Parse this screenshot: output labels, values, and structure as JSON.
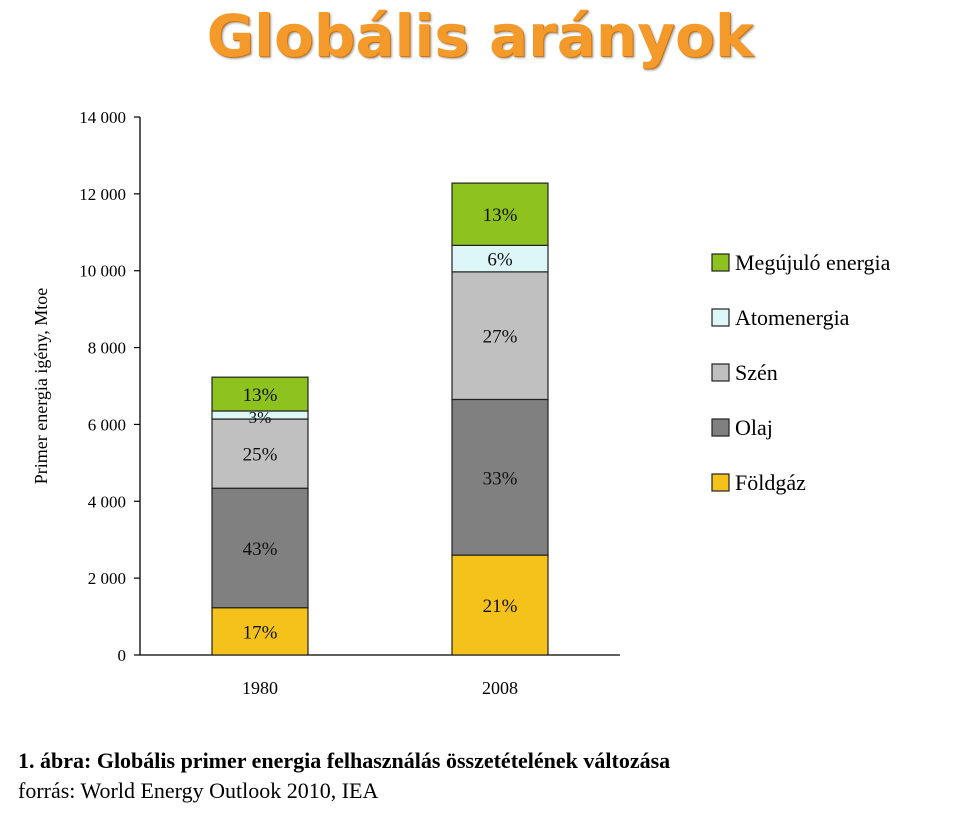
{
  "page": {
    "title": "Globális arányok",
    "caption": "1. ábra: Globális primer energia felhasználás összetételének változása",
    "source": "forrás: World Energy Outlook 2010, IEA"
  },
  "chart_data": {
    "type": "bar",
    "stacked": true,
    "title": "",
    "xlabel": "",
    "ylabel": "Primer energia igény, Mtoe",
    "ylim": [
      0,
      14000
    ],
    "yticks": [
      0,
      2000,
      4000,
      6000,
      8000,
      10000,
      12000,
      14000
    ],
    "ytick_labels": [
      "0",
      "2 000",
      "4 000",
      "6 000",
      "8 000",
      "10 000",
      "12 000",
      "14 000"
    ],
    "grid": false,
    "legend_position": "right",
    "categories": [
      "1980",
      "2008"
    ],
    "series": [
      {
        "name": "Földgáz",
        "color": "#f5c21b",
        "values": [
          1230,
          2600
        ],
        "labels": [
          "17%",
          "21%"
        ]
      },
      {
        "name": "Olaj",
        "color": "#808080",
        "values": [
          3110,
          4050
        ],
        "labels": [
          "43%",
          "33%"
        ]
      },
      {
        "name": "Szén",
        "color": "#c0c0c0",
        "values": [
          1800,
          3320
        ],
        "labels": [
          "25%",
          "27%"
        ]
      },
      {
        "name": "Atomenergia",
        "color": "#ddf7f9",
        "values": [
          210,
          690
        ],
        "labels": [
          "3%",
          "6%"
        ]
      },
      {
        "name": "Megújuló energia",
        "color": "#8dc21f",
        "values": [
          880,
          1620
        ],
        "labels": [
          "13%",
          "13%"
        ]
      }
    ],
    "legend_order": [
      "Megújuló energia",
      "Atomenergia",
      "Szén",
      "Olaj",
      "Földgáz"
    ]
  }
}
